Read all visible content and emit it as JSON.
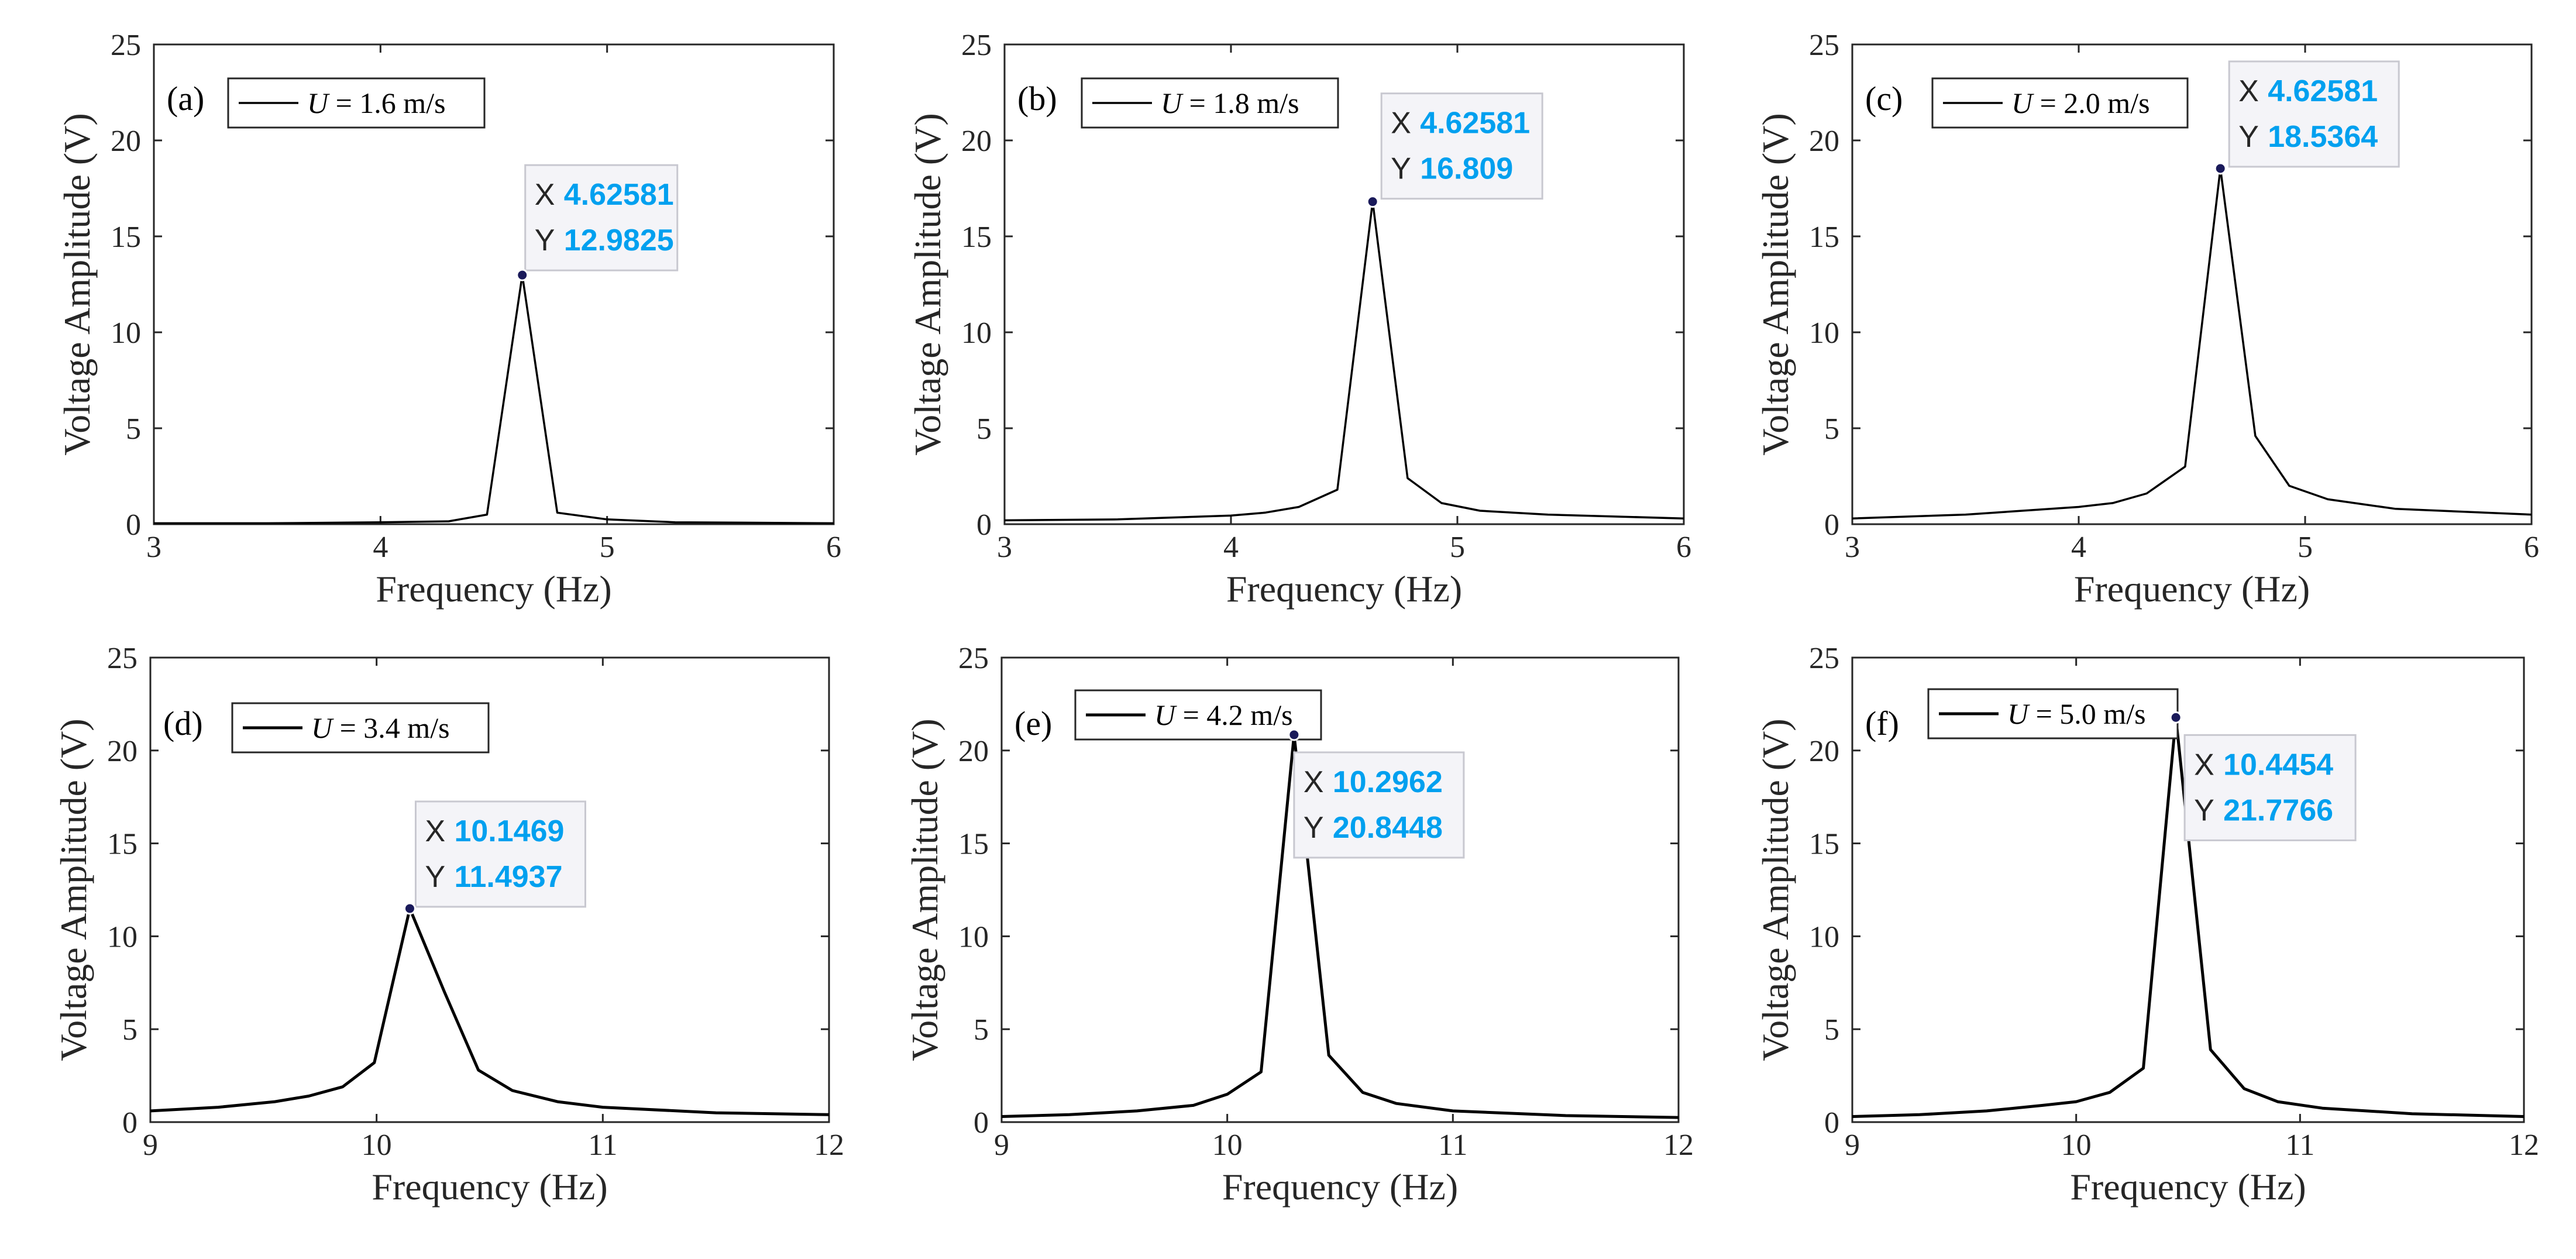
{
  "chart_data": [
    {
      "type": "line",
      "panel_label": "(a)",
      "legend": {
        "symbol": "U",
        "rest": " = 1.6 m/s"
      },
      "xlabel": "Frequency (Hz)",
      "ylabel": "Voltage Amplitude (V)",
      "xlim": [
        3,
        6
      ],
      "ylim": [
        0,
        25
      ],
      "xticks": [
        "3",
        "4",
        "5",
        "6"
      ],
      "yticks": [
        "0",
        "5",
        "10",
        "15",
        "20",
        "25"
      ],
      "x": [
        3.0,
        3.5,
        4.0,
        4.3,
        4.47,
        4.62581,
        4.78,
        5.0,
        5.3,
        6.0
      ],
      "y": [
        0.05,
        0.05,
        0.1,
        0.15,
        0.5,
        12.9825,
        0.6,
        0.25,
        0.1,
        0.05
      ],
      "datatip": {
        "x_label": "X",
        "x_value": "4.62581",
        "y_label": "Y",
        "y_value": "12.9825",
        "x": 4.62581,
        "y": 12.9825
      }
    },
    {
      "type": "line",
      "panel_label": "(b)",
      "legend": {
        "symbol": "U",
        "rest": " = 1.8 m/s"
      },
      "xlabel": "Frequency (Hz)",
      "ylabel": "Voltage Amplitude (V)",
      "xlim": [
        3,
        6
      ],
      "ylim": [
        0,
        25
      ],
      "xticks": [
        "3",
        "4",
        "5",
        "6"
      ],
      "yticks": [
        "0",
        "5",
        "10",
        "15",
        "20",
        "25"
      ],
      "x": [
        3.0,
        3.5,
        4.0,
        4.15,
        4.3,
        4.47,
        4.62581,
        4.78,
        4.93,
        5.1,
        5.4,
        6.0
      ],
      "y": [
        0.2,
        0.25,
        0.45,
        0.6,
        0.9,
        1.8,
        16.809,
        2.4,
        1.1,
        0.7,
        0.5,
        0.3
      ],
      "datatip": {
        "x_label": "X",
        "x_value": "4.62581",
        "y_label": "Y",
        "y_value": "16.809",
        "x": 4.62581,
        "y": 16.809
      }
    },
    {
      "type": "line",
      "panel_label": "(c)",
      "legend": {
        "symbol": "U",
        "rest": " = 2.0 m/s"
      },
      "xlabel": "Frequency (Hz)",
      "ylabel": "Voltage Amplitude (V)",
      "xlim": [
        3,
        6
      ],
      "ylim": [
        0,
        25
      ],
      "xticks": [
        "3",
        "4",
        "5",
        "6"
      ],
      "yticks": [
        "0",
        "5",
        "10",
        "15",
        "20",
        "25"
      ],
      "x": [
        3.0,
        3.5,
        4.0,
        4.15,
        4.3,
        4.47,
        4.62581,
        4.78,
        4.93,
        5.1,
        5.4,
        6.0
      ],
      "y": [
        0.3,
        0.5,
        0.9,
        1.1,
        1.6,
        3.0,
        18.5364,
        4.6,
        2.0,
        1.3,
        0.8,
        0.5
      ],
      "datatip": {
        "x_label": "X",
        "x_value": "4.62581",
        "y_label": "Y",
        "y_value": "18.5364",
        "x": 4.62581,
        "y": 18.5364
      }
    },
    {
      "type": "line",
      "panel_label": "(d)",
      "legend": {
        "symbol": "U",
        "rest": " = 3.4 m/s"
      },
      "xlabel": "Frequency (Hz)",
      "ylabel": "Voltage Amplitude (V)",
      "xlim": [
        9,
        12
      ],
      "ylim": [
        0,
        25
      ],
      "xticks": [
        "9",
        "10",
        "11",
        "12"
      ],
      "yticks": [
        "0",
        "5",
        "10",
        "15",
        "20",
        "25"
      ],
      "x": [
        9.0,
        9.3,
        9.55,
        9.7,
        9.85,
        9.99,
        10.1469,
        10.3,
        10.45,
        10.6,
        10.8,
        11.0,
        11.5,
        12.0
      ],
      "y": [
        0.6,
        0.8,
        1.1,
        1.4,
        1.9,
        3.2,
        11.4937,
        7.0,
        2.8,
        1.7,
        1.1,
        0.8,
        0.5,
        0.4
      ],
      "datatip": {
        "x_label": "X",
        "x_value": "10.1469",
        "y_label": "Y",
        "y_value": "11.4937",
        "x": 10.1469,
        "y": 11.4937
      }
    },
    {
      "type": "line",
      "panel_label": "(e)",
      "legend": {
        "symbol": "U",
        "rest": " = 4.2 m/s"
      },
      "xlabel": "Frequency (Hz)",
      "ylabel": "Voltage Amplitude (V)",
      "xlim": [
        9,
        12
      ],
      "ylim": [
        0,
        25
      ],
      "xticks": [
        "9",
        "10",
        "11",
        "12"
      ],
      "yticks": [
        "0",
        "5",
        "10",
        "15",
        "20",
        "25"
      ],
      "x": [
        9.0,
        9.3,
        9.6,
        9.85,
        10.0,
        10.15,
        10.2962,
        10.45,
        10.6,
        10.75,
        11.0,
        11.5,
        12.0
      ],
      "y": [
        0.3,
        0.4,
        0.6,
        0.9,
        1.5,
        2.7,
        20.8448,
        3.6,
        1.6,
        1.0,
        0.6,
        0.35,
        0.25
      ],
      "datatip": {
        "x_label": "X",
        "x_value": "10.2962",
        "y_label": "Y",
        "y_value": "20.8448",
        "x": 10.2962,
        "y": 20.8448
      }
    },
    {
      "type": "line",
      "panel_label": "(f)",
      "legend": {
        "symbol": "U",
        "rest": " = 5.0 m/s"
      },
      "xlabel": "Frequency (Hz)",
      "ylabel": "Voltage Amplitude (V)",
      "xlim": [
        9,
        12
      ],
      "ylim": [
        0,
        25
      ],
      "xticks": [
        "9",
        "10",
        "11",
        "12"
      ],
      "yticks": [
        "0",
        "5",
        "10",
        "15",
        "20",
        "25"
      ],
      "x": [
        9.0,
        9.3,
        9.6,
        9.85,
        10.0,
        10.15,
        10.3,
        10.4454,
        10.6,
        10.75,
        10.9,
        11.1,
        11.5,
        12.0
      ],
      "y": [
        0.3,
        0.4,
        0.6,
        0.9,
        1.1,
        1.6,
        2.9,
        21.7766,
        3.9,
        1.8,
        1.1,
        0.75,
        0.45,
        0.3
      ],
      "datatip": {
        "x_label": "X",
        "x_value": "10.4454",
        "y_label": "Y",
        "y_value": "21.7766",
        "x": 10.4454,
        "y": 21.7766
      }
    }
  ]
}
